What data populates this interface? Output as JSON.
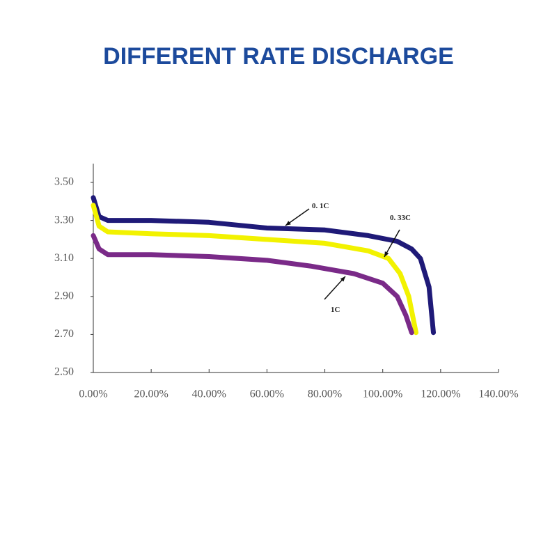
{
  "chart_data": {
    "type": "line",
    "title": "DIFFERENT RATE DISCHARGE",
    "xlim": [
      0,
      140
    ],
    "ylim": [
      2.5,
      3.6
    ],
    "xticks": [
      {
        "value": 0,
        "label": "0.00%"
      },
      {
        "value": 20,
        "label": "20.00%"
      },
      {
        "value": 40,
        "label": "40.00%"
      },
      {
        "value": 60,
        "label": "60.00%"
      },
      {
        "value": 80,
        "label": "80.00%"
      },
      {
        "value": 100,
        "label": "100.00%"
      },
      {
        "value": 120,
        "label": "120.00%"
      },
      {
        "value": 140,
        "label": "140.00%"
      }
    ],
    "yticks": [
      {
        "value": 2.5,
        "label": "2.50"
      },
      {
        "value": 2.7,
        "label": "2.70"
      },
      {
        "value": 2.9,
        "label": "2.90"
      },
      {
        "value": 3.1,
        "label": "3.10"
      },
      {
        "value": 3.3,
        "label": "3.30"
      },
      {
        "value": 3.5,
        "label": "3.50"
      }
    ],
    "series": [
      {
        "name": "0. 1C",
        "color": "#1f1a78",
        "x": [
          0,
          2,
          5,
          20,
          40,
          60,
          80,
          95,
          105,
          110,
          113,
          116,
          117.5
        ],
        "values": [
          3.42,
          3.32,
          3.3,
          3.3,
          3.29,
          3.26,
          3.25,
          3.22,
          3.19,
          3.15,
          3.1,
          2.95,
          2.71
        ]
      },
      {
        "name": "0. 33C",
        "color": "#f2f200",
        "x": [
          0,
          2,
          5,
          20,
          40,
          60,
          80,
          95,
          102,
          106,
          109,
          111.5
        ],
        "values": [
          3.38,
          3.27,
          3.24,
          3.23,
          3.22,
          3.2,
          3.18,
          3.14,
          3.1,
          3.02,
          2.9,
          2.71
        ]
      },
      {
        "name": "1C",
        "color": "#7a2a88",
        "x": [
          0,
          2,
          5,
          20,
          40,
          60,
          75,
          90,
          100,
          105,
          108,
          110
        ],
        "values": [
          3.22,
          3.15,
          3.12,
          3.12,
          3.11,
          3.09,
          3.06,
          3.02,
          2.97,
          2.9,
          2.8,
          2.71
        ]
      }
    ]
  }
}
